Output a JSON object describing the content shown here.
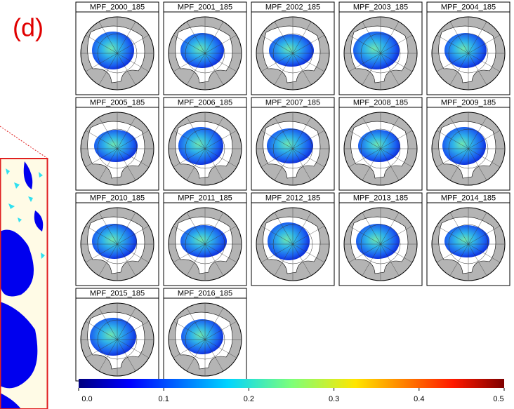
{
  "panel_label": "(d)",
  "maps": [
    "MPF_2000_185",
    "MPF_2001_185",
    "MPF_2002_185",
    "MPF_2003_185",
    "MPF_2004_185",
    "MPF_2005_185",
    "MPF_2006_185",
    "MPF_2007_185",
    "MPF_2008_185",
    "MPF_2009_185",
    "MPF_2010_185",
    "MPF_2011_185",
    "MPF_2012_185",
    "MPF_2013_185",
    "MPF_2014_185",
    "MPF_2015_185",
    "MPF_2016_185"
  ],
  "colorbar": {
    "lim": [
      0,
      0.5
    ],
    "ticks": [
      {
        "value": 0,
        "label": "0.0"
      },
      {
        "value": 0.1,
        "label": "0.1"
      },
      {
        "value": 0.2,
        "label": "0.2"
      },
      {
        "value": 0.3,
        "label": "0.3"
      },
      {
        "value": 0.4,
        "label": "0.4"
      },
      {
        "value": 0.5,
        "label": "0.5"
      }
    ]
  }
}
